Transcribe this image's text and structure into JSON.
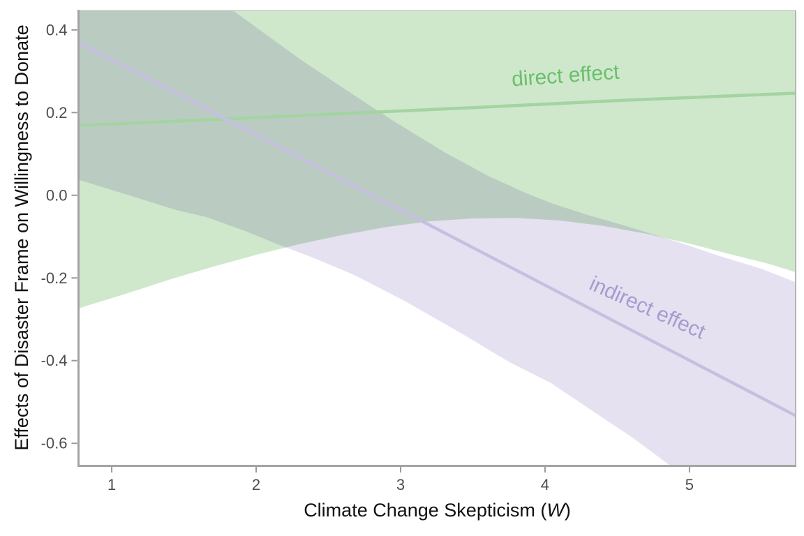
{
  "chart_data": {
    "type": "line",
    "title": "",
    "xlabel_prefix": "Climate Change Skepticism (",
    "xlabel_variable": "W",
    "xlabel_suffix": ")",
    "ylabel": "Effects of Disaster Frame on Willingness to Donate",
    "xlim": [
      0.775,
      5.735
    ],
    "ylim": [
      -0.652,
      0.447
    ],
    "grid": false,
    "legend": "in-plot text labels",
    "x_ticks": {
      "values": [
        1,
        2,
        3,
        4,
        5
      ],
      "labels": [
        "1",
        "2",
        "3",
        "4",
        "5"
      ]
    },
    "y_ticks": {
      "values": [
        0.4,
        0.2,
        0.0,
        -0.2,
        -0.4,
        -0.6
      ],
      "labels": [
        "0.4",
        "0.2",
        "0.0",
        "-0.2",
        "-0.4",
        "-0.6"
      ]
    },
    "series": [
      {
        "name": "direct effect",
        "label": "direct effect",
        "label_pos": [
          4.145,
          0.273
        ],
        "label_rotation_deg": -4,
        "label_color": "#6abf6b",
        "line_color": "#a3d4a1",
        "band_color": "#cfe8cc",
        "line": [
          [
            0.775,
            0.169
          ],
          [
            1.5,
            0.18
          ],
          [
            2.5,
            0.196
          ],
          [
            3.5,
            0.212
          ],
          [
            4.5,
            0.229
          ],
          [
            5.735,
            0.247
          ]
        ],
        "band_upper": [
          [
            0.775,
            0.6
          ],
          [
            5.735,
            0.6
          ]
        ],
        "band_lower": [
          [
            0.775,
            -0.273
          ],
          [
            1.1,
            -0.238
          ],
          [
            1.4,
            -0.204
          ],
          [
            1.7,
            -0.173
          ],
          [
            2.0,
            -0.144
          ],
          [
            2.3,
            -0.118
          ],
          [
            2.6,
            -0.096
          ],
          [
            2.9,
            -0.077
          ],
          [
            3.2,
            -0.063
          ],
          [
            3.5,
            -0.056
          ],
          [
            3.8,
            -0.055
          ],
          [
            4.1,
            -0.061
          ],
          [
            4.4,
            -0.074
          ],
          [
            4.7,
            -0.093
          ],
          [
            5.0,
            -0.117
          ],
          [
            5.3,
            -0.144
          ],
          [
            5.55,
            -0.166
          ],
          [
            5.735,
            -0.186
          ]
        ]
      },
      {
        "name": "indirect effect",
        "label": "indirect effect",
        "label_pos": [
          4.69,
          -0.287
        ],
        "label_rotation_deg": 24,
        "label_color": "#a49dce",
        "line_color": "#c6bfe0",
        "band_color": "#e6e1f1",
        "band_blend": "multiply",
        "line": [
          [
            0.775,
            0.369
          ],
          [
            5.735,
            -0.533
          ]
        ],
        "band_upper": [
          [
            0.775,
            0.73
          ],
          [
            1.3,
            0.59
          ],
          [
            1.84,
            0.447
          ],
          [
            2.3,
            0.33
          ],
          [
            2.6,
            0.26
          ],
          [
            2.95,
            0.18
          ],
          [
            3.3,
            0.105
          ],
          [
            3.6,
            0.048
          ],
          [
            3.85,
            0.008
          ],
          [
            4.05,
            -0.02
          ],
          [
            4.3,
            -0.048
          ],
          [
            4.5,
            -0.068
          ],
          [
            4.8,
            -0.1
          ],
          [
            5.0,
            -0.122
          ],
          [
            5.2,
            -0.146
          ],
          [
            5.5,
            -0.178
          ],
          [
            5.735,
            -0.21
          ]
        ],
        "band_lower": [
          [
            0.775,
            0.037
          ],
          [
            1.1,
            0.002
          ],
          [
            1.45,
            -0.036
          ],
          [
            1.66,
            -0.053
          ],
          [
            1.92,
            -0.086
          ],
          [
            2.16,
            -0.12
          ],
          [
            2.4,
            -0.152
          ],
          [
            2.68,
            -0.193
          ],
          [
            3.03,
            -0.256
          ],
          [
            3.43,
            -0.336
          ],
          [
            3.75,
            -0.403
          ],
          [
            4.04,
            -0.454
          ],
          [
            4.3,
            -0.515
          ],
          [
            4.6,
            -0.585
          ],
          [
            4.86,
            -0.652
          ],
          [
            5.1,
            -0.71
          ],
          [
            5.4,
            -0.79
          ],
          [
            5.735,
            -0.87
          ]
        ]
      }
    ],
    "style": {
      "panel_bg": "#ffffff",
      "axis_line_color": "#a3a3a3",
      "panel_border_top_color": "#cccccc",
      "panel_border_right_color": "#b5b5b5",
      "tick_color": "#9a9a9a",
      "tick_label_color": "#4d4d4d",
      "axis_title_color": "#111111"
    }
  }
}
